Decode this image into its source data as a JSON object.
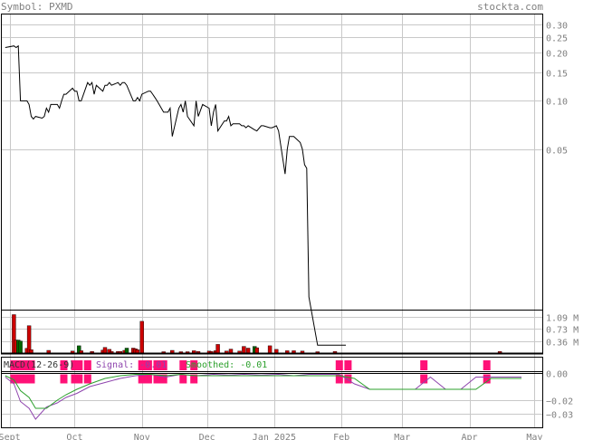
{
  "header": {
    "symbol_label": "Symbol: PXMD",
    "brand": "stockta.com"
  },
  "chart_data": [
    {
      "type": "line",
      "panel": "price",
      "log_scale": true,
      "ylim": [
        0.005,
        0.35
      ],
      "y_ticks": [
        "0.30",
        "0.25",
        "0.20",
        "0.15",
        "0.10",
        "0.05"
      ],
      "y_tick_values": [
        0.3,
        0.25,
        0.2,
        0.15,
        0.1,
        0.05
      ],
      "grid": true,
      "color": "#000000",
      "x": [
        "2024-08-30",
        "2024-09-03",
        "2024-09-04",
        "2024-09-05",
        "2024-09-06",
        "2024-09-09",
        "2024-09-10",
        "2024-09-11",
        "2024-09-12",
        "2024-09-13",
        "2024-09-16",
        "2024-09-17",
        "2024-09-18",
        "2024-09-19",
        "2024-09-20",
        "2024-09-23",
        "2024-09-24",
        "2024-09-25",
        "2024-09-26",
        "2024-09-27",
        "2024-09-30",
        "2024-10-01",
        "2024-10-02",
        "2024-10-03",
        "2024-10-04",
        "2024-10-07",
        "2024-10-08",
        "2024-10-09",
        "2024-10-10",
        "2024-10-11",
        "2024-10-14",
        "2024-10-15",
        "2024-10-16",
        "2024-10-17",
        "2024-10-18",
        "2024-10-21",
        "2024-10-22",
        "2024-10-23",
        "2024-10-24",
        "2024-10-25",
        "2024-10-28",
        "2024-10-29",
        "2024-10-30",
        "2024-10-31",
        "2024-11-01",
        "2024-11-04",
        "2024-11-05",
        "2024-11-06",
        "2024-11-07",
        "2024-11-08",
        "2024-11-11",
        "2024-11-12",
        "2024-11-13",
        "2024-11-14",
        "2024-11-15",
        "2024-11-18",
        "2024-11-19",
        "2024-11-20",
        "2024-11-21",
        "2024-11-22",
        "2024-11-25",
        "2024-11-26",
        "2024-11-27",
        "2024-11-29",
        "2024-12-02",
        "2024-12-03",
        "2024-12-04",
        "2024-12-05",
        "2024-12-06",
        "2024-12-09",
        "2024-12-10",
        "2024-12-11",
        "2024-12-12",
        "2024-12-13",
        "2024-12-16",
        "2024-12-17",
        "2024-12-18",
        "2024-12-19",
        "2024-12-20",
        "2024-12-23",
        "2024-12-24",
        "2024-12-26",
        "2024-12-27",
        "2024-12-30",
        "2024-12-31",
        "2025-01-02",
        "2025-01-03",
        "2025-01-06",
        "2025-01-07",
        "2025-01-08",
        "2025-01-10",
        "2025-01-13",
        "2025-01-14",
        "2025-01-15",
        "2025-01-16",
        "2025-01-17",
        "2025-01-21",
        "2025-01-22",
        "2025-01-23",
        "2025-01-24",
        "2025-01-27",
        "2025-01-28",
        "2025-01-29",
        "2025-01-30",
        "2025-01-31",
        "2025-02-03"
      ],
      "y": [
        0.215,
        0.22,
        0.215,
        0.22,
        0.1,
        0.1,
        0.095,
        0.08,
        0.077,
        0.08,
        0.078,
        0.08,
        0.09,
        0.085,
        0.095,
        0.095,
        0.09,
        0.1,
        0.11,
        0.11,
        0.12,
        0.115,
        0.115,
        0.1,
        0.1,
        0.13,
        0.125,
        0.13,
        0.11,
        0.125,
        0.115,
        0.125,
        0.125,
        0.13,
        0.125,
        0.13,
        0.125,
        0.13,
        0.13,
        0.125,
        0.1,
        0.1,
        0.105,
        0.1,
        0.11,
        0.115,
        0.115,
        0.11,
        0.105,
        0.1,
        0.085,
        0.085,
        0.085,
        0.09,
        0.06,
        0.09,
        0.095,
        0.085,
        0.1,
        0.08,
        0.07,
        0.1,
        0.08,
        0.095,
        0.09,
        0.07,
        0.085,
        0.095,
        0.065,
        0.075,
        0.075,
        0.08,
        0.07,
        0.072,
        0.072,
        0.07,
        0.07,
        0.068,
        0.07,
        0.066,
        0.065,
        0.07,
        0.07,
        0.068,
        0.068,
        0.07,
        0.065,
        0.035,
        0.05,
        0.06,
        0.06,
        0.055,
        0.05,
        0.04,
        0.038,
        0.006,
        0.003,
        0.003,
        0.003,
        0.003,
        0.003,
        0.003,
        0.003,
        0.003,
        0.003,
        0.003
      ]
    },
    {
      "type": "bar",
      "panel": "volume",
      "y_ticks": [
        "1.09 M",
        "0.73 M",
        "0.36 M"
      ],
      "y_tick_values": [
        1.09,
        0.73,
        0.36
      ],
      "unit": "M",
      "ylim": [
        0,
        1.3
      ],
      "bars": [
        {
          "date": "2024-09-03",
          "value": 1.15,
          "color": "#cc0000"
        },
        {
          "date": "2024-09-04",
          "value": 0.39,
          "color": "#cc0000"
        },
        {
          "date": "2024-09-05",
          "value": 0.39,
          "color": "#006600"
        },
        {
          "date": "2024-09-06",
          "value": 0.36,
          "color": "#006600"
        },
        {
          "date": "2024-09-09",
          "value": 0.14,
          "color": "#cc0000"
        },
        {
          "date": "2024-09-10",
          "value": 0.82,
          "color": "#cc0000"
        },
        {
          "date": "2024-09-11",
          "value": 0.1,
          "color": "#cc0000"
        },
        {
          "date": "2024-09-19",
          "value": 0.08,
          "color": "#cc0000"
        },
        {
          "date": "2024-09-30",
          "value": 0.06,
          "color": "#cc0000"
        },
        {
          "date": "2024-10-03",
          "value": 0.22,
          "color": "#006600"
        },
        {
          "date": "2024-10-04",
          "value": 0.07,
          "color": "#cc0000"
        },
        {
          "date": "2024-10-09",
          "value": 0.05,
          "color": "#cc0000"
        },
        {
          "date": "2024-10-14",
          "value": 0.09,
          "color": "#cc0000"
        },
        {
          "date": "2024-10-15",
          "value": 0.17,
          "color": "#cc0000"
        },
        {
          "date": "2024-10-17",
          "value": 0.11,
          "color": "#cc0000"
        },
        {
          "date": "2024-10-18",
          "value": 0.05,
          "color": "#cc0000"
        },
        {
          "date": "2024-10-21",
          "value": 0.05,
          "color": "#cc0000"
        },
        {
          "date": "2024-10-22",
          "value": 0.05,
          "color": "#cc0000"
        },
        {
          "date": "2024-10-24",
          "value": 0.08,
          "color": "#cc0000"
        },
        {
          "date": "2024-10-25",
          "value": 0.15,
          "color": "#006600"
        },
        {
          "date": "2024-10-28",
          "value": 0.15,
          "color": "#cc0000"
        },
        {
          "date": "2024-10-29",
          "value": 0.13,
          "color": "#cc0000"
        },
        {
          "date": "2024-10-30",
          "value": 0.1,
          "color": "#cc0000"
        },
        {
          "date": "2024-11-01",
          "value": 0.95,
          "color": "#cc0000"
        },
        {
          "date": "2024-11-11",
          "value": 0.04,
          "color": "#cc0000"
        },
        {
          "date": "2024-11-15",
          "value": 0.08,
          "color": "#cc0000"
        },
        {
          "date": "2024-11-19",
          "value": 0.04,
          "color": "#cc0000"
        },
        {
          "date": "2024-11-22",
          "value": 0.04,
          "color": "#cc0000"
        },
        {
          "date": "2024-11-25",
          "value": 0.07,
          "color": "#cc0000"
        },
        {
          "date": "2024-11-27",
          "value": 0.05,
          "color": "#cc0000"
        },
        {
          "date": "2024-12-02",
          "value": 0.06,
          "color": "#cc0000"
        },
        {
          "date": "2024-12-03",
          "value": 0.05,
          "color": "#cc0000"
        },
        {
          "date": "2024-12-05",
          "value": 0.07,
          "color": "#cc0000"
        },
        {
          "date": "2024-12-06",
          "value": 0.26,
          "color": "#cc0000"
        },
        {
          "date": "2024-12-10",
          "value": 0.06,
          "color": "#cc0000"
        },
        {
          "date": "2024-12-12",
          "value": 0.12,
          "color": "#cc0000"
        },
        {
          "date": "2024-12-16",
          "value": 0.06,
          "color": "#cc0000"
        },
        {
          "date": "2024-12-18",
          "value": 0.2,
          "color": "#cc0000"
        },
        {
          "date": "2024-12-20",
          "value": 0.15,
          "color": "#cc0000"
        },
        {
          "date": "2024-12-23",
          "value": 0.2,
          "color": "#006600"
        },
        {
          "date": "2024-12-24",
          "value": 0.16,
          "color": "#cc0000"
        },
        {
          "date": "2024-12-30",
          "value": 0.22,
          "color": "#cc0000"
        },
        {
          "date": "2025-01-02",
          "value": 0.11,
          "color": "#cc0000"
        },
        {
          "date": "2025-01-07",
          "value": 0.07,
          "color": "#cc0000"
        },
        {
          "date": "2025-01-10",
          "value": 0.07,
          "color": "#cc0000"
        },
        {
          "date": "2025-01-14",
          "value": 0.06,
          "color": "#cc0000"
        },
        {
          "date": "2025-01-21",
          "value": 0.04,
          "color": "#cc0000"
        },
        {
          "date": "2025-01-29",
          "value": 0.05,
          "color": "#cc0000"
        },
        {
          "date": "2025-04-15",
          "value": 0.05,
          "color": "#cc0000"
        }
      ]
    },
    {
      "type": "line",
      "panel": "macd",
      "title": "MACD(12-26-9)",
      "legend_left": "Signal: -0.01",
      "legend_right": "Smoothed: -0.01",
      "y_ticks": [
        "0.00",
        "−0.02",
        "−0.03"
      ],
      "y_tick_values": [
        0.0,
        -0.02,
        -0.03
      ],
      "ylim": [
        -0.04,
        0.012
      ],
      "bar_color": "#ff1177",
      "series": [
        {
          "name": "Signal",
          "color": "#8e44ad",
          "x": [
            "2024-08-30",
            "2024-09-03",
            "2024-09-06",
            "2024-09-10",
            "2024-09-13",
            "2024-09-18",
            "2024-09-23",
            "2024-09-27",
            "2024-10-02",
            "2024-10-08",
            "2024-10-15",
            "2024-10-22",
            "2024-10-29",
            "2024-11-05",
            "2024-11-12",
            "2024-11-19",
            "2024-11-26",
            "2024-12-04",
            "2024-12-11",
            "2024-12-18",
            "2024-12-26",
            "2025-01-03",
            "2025-01-10",
            "2025-01-17",
            "2025-01-24",
            "2025-01-31",
            "2025-02-07",
            "2025-02-14",
            "2025-02-21",
            "2025-02-28",
            "2025-03-07",
            "2025-03-14",
            "2025-03-21",
            "2025-03-28",
            "2025-04-04",
            "2025-04-11",
            "2025-04-18",
            "2025-04-25"
          ],
          "y": [
            -0.003,
            -0.008,
            -0.021,
            -0.026,
            -0.034,
            -0.025,
            -0.022,
            -0.018,
            -0.015,
            -0.01,
            -0.007,
            -0.004,
            -0.002,
            -0.001,
            -0.003,
            -0.001,
            -0.002,
            -0.001,
            -0.0015,
            -0.001,
            -0.0015,
            -0.001,
            -0.002,
            -0.001,
            -0.001,
            -0.001,
            -0.008,
            -0.012,
            -0.012,
            -0.012,
            -0.012,
            -0.003,
            -0.012,
            -0.012,
            -0.003,
            -0.003,
            -0.003,
            -0.003
          ]
        },
        {
          "name": "Smoothed",
          "color": "#2ca02c",
          "x": [
            "2024-08-30",
            "2024-09-03",
            "2024-09-06",
            "2024-09-10",
            "2024-09-13",
            "2024-09-18",
            "2024-09-23",
            "2024-09-27",
            "2024-10-02",
            "2024-10-08",
            "2024-10-15",
            "2024-10-22",
            "2024-10-29",
            "2024-11-05",
            "2024-11-12",
            "2024-11-19",
            "2024-11-26",
            "2024-12-04",
            "2024-12-11",
            "2024-12-18",
            "2024-12-26",
            "2025-01-03",
            "2025-01-10",
            "2025-01-17",
            "2025-01-24",
            "2025-01-31",
            "2025-02-07",
            "2025-02-14",
            "2025-02-21",
            "2025-02-28",
            "2025-03-07",
            "2025-03-14",
            "2025-03-21",
            "2025-03-28",
            "2025-04-04",
            "2025-04-11",
            "2025-04-18",
            "2025-04-25"
          ],
          "y": [
            -0.002,
            -0.005,
            -0.013,
            -0.018,
            -0.026,
            -0.026,
            -0.02,
            -0.016,
            -0.012,
            -0.008,
            -0.004,
            -0.002,
            -0.001,
            -0.001,
            -0.002,
            -0.001,
            -0.002,
            -0.002,
            -0.002,
            -0.002,
            -0.002,
            -0.002,
            -0.002,
            -0.002,
            -0.002,
            -0.002,
            -0.004,
            -0.012,
            -0.012,
            -0.012,
            -0.012,
            -0.012,
            -0.012,
            -0.012,
            -0.012,
            -0.004,
            -0.004,
            -0.004
          ]
        }
      ],
      "bars": [
        {
          "date": "2024-09-03"
        },
        {
          "date": "2024-09-04"
        },
        {
          "date": "2024-09-05"
        },
        {
          "date": "2024-09-06"
        },
        {
          "date": "2024-09-09"
        },
        {
          "date": "2024-09-10"
        },
        {
          "date": "2024-09-11"
        },
        {
          "date": "2024-09-26"
        },
        {
          "date": "2024-10-01"
        },
        {
          "date": "2024-10-03"
        },
        {
          "date": "2024-10-07"
        },
        {
          "date": "2024-11-01"
        },
        {
          "date": "2024-11-04"
        },
        {
          "date": "2024-11-08"
        },
        {
          "date": "2024-11-11"
        },
        {
          "date": "2024-11-20"
        },
        {
          "date": "2024-11-25"
        },
        {
          "date": "2025-01-31"
        },
        {
          "date": "2025-02-04"
        },
        {
          "date": "2025-03-11"
        },
        {
          "date": "2025-04-09"
        }
      ]
    }
  ],
  "x_axis": {
    "labels": [
      "Sept",
      "Oct",
      "Nov",
      "Dec",
      "Jan 2025",
      "Feb",
      "Mar",
      "Apr",
      "May"
    ],
    "label_dates": [
      "2024-09-01",
      "2024-10-01",
      "2024-11-01",
      "2024-12-01",
      "2025-01-01",
      "2025-02-01",
      "2025-03-01",
      "2025-04-01",
      "2025-05-01"
    ]
  },
  "colors": {
    "grid": "#c8c8c8",
    "axis_text": "#808080",
    "frame": "#000000",
    "volume_up": "#006600",
    "volume_down": "#cc0000",
    "macd_bar": "#ff1177"
  }
}
